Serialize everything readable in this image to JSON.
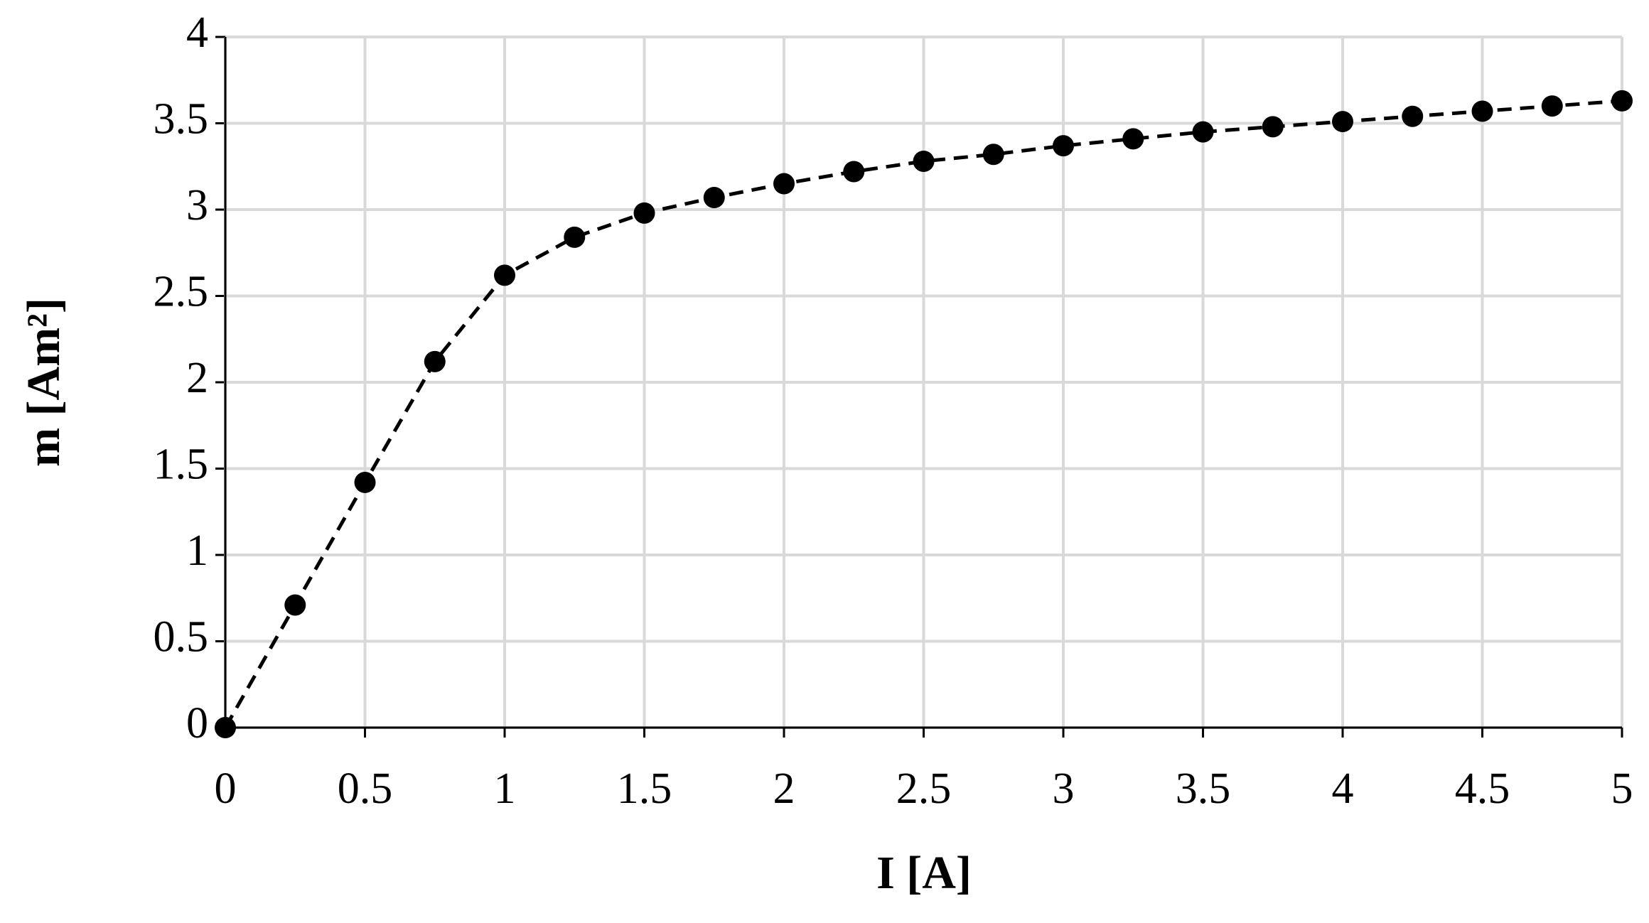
{
  "chart_data": {
    "type": "line",
    "x_label": "I [A]",
    "y_label": "m [Am²]",
    "x": [
      0,
      0.25,
      0.5,
      0.75,
      1,
      1.25,
      1.5,
      1.75,
      2,
      2.25,
      2.5,
      2.75,
      3,
      3.25,
      3.5,
      3.75,
      4,
      4.25,
      4.5,
      4.75,
      5
    ],
    "series": [
      {
        "color": "#000000",
        "values": [
          0,
          0.71,
          1.42,
          2.12,
          2.62,
          2.84,
          2.98,
          3.07,
          3.15,
          3.22,
          3.28,
          3.32,
          3.37,
          3.41,
          3.45,
          3.48,
          3.51,
          3.54,
          3.57,
          3.6,
          3.63
        ]
      }
    ],
    "xlim": [
      0,
      5
    ],
    "xticks": [
      0,
      0.5,
      1,
      1.5,
      2,
      2.5,
      3,
      3.5,
      4,
      4.5,
      5
    ],
    "ylim": [
      0,
      4
    ],
    "yticks": [
      0,
      0.5,
      1,
      1.5,
      2,
      2.5,
      3,
      3.5,
      4
    ],
    "grid": true,
    "line_style": "dashed",
    "marker": "circle"
  }
}
